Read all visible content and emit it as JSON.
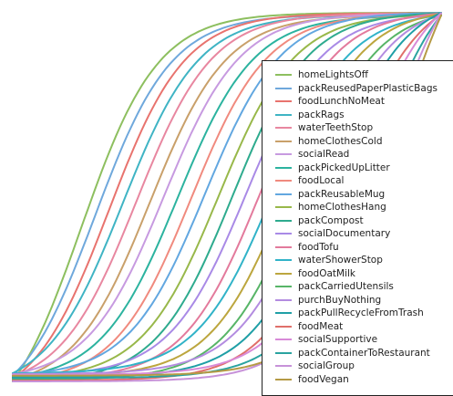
{
  "chart_data": {
    "type": "line",
    "title": "",
    "xlabel": "",
    "ylabel": "",
    "grid": false,
    "legend_position": "right",
    "shape": "sigmoid",
    "series": [
      {
        "name": "homeLightsOff",
        "color": "#8dbf5f",
        "midpoint": 0.2,
        "steepness": 1.0
      },
      {
        "name": "packReusedPaperPlasticBags",
        "color": "#6fa8dc",
        "midpoint": 0.24,
        "steepness": 1.0
      },
      {
        "name": "foodLunchNoMeat",
        "color": "#e8736e",
        "midpoint": 0.28,
        "steepness": 1.0
      },
      {
        "name": "packRags",
        "color": "#3fb4c4",
        "midpoint": 0.32,
        "steepness": 1.0
      },
      {
        "name": "waterTeethStop",
        "color": "#e887a0",
        "midpoint": 0.36,
        "steepness": 1.0
      },
      {
        "name": "homeClothesCold",
        "color": "#c9a06a",
        "midpoint": 0.4,
        "steepness": 1.0
      },
      {
        "name": "socialRead",
        "color": "#c79ae0",
        "midpoint": 0.44,
        "steepness": 1.0
      },
      {
        "name": "packPickedUpLitter",
        "color": "#2cb39f",
        "midpoint": 0.48,
        "steepness": 1.0
      },
      {
        "name": "foodLocal",
        "color": "#f08a7e",
        "midpoint": 0.52,
        "steepness": 1.0
      },
      {
        "name": "packReusableMug",
        "color": "#62a7e0",
        "midpoint": 0.56,
        "steepness": 1.0
      },
      {
        "name": "homeClothesHang",
        "color": "#98b84a",
        "midpoint": 0.6,
        "steepness": 1.0
      },
      {
        "name": "packCompost",
        "color": "#2eab8e",
        "midpoint": 0.64,
        "steepness": 1.0
      },
      {
        "name": "socialDocumentary",
        "color": "#a98ae6",
        "midpoint": 0.68,
        "steepness": 1.0
      },
      {
        "name": "foodTofu",
        "color": "#e37a9c",
        "midpoint": 0.72,
        "steepness": 1.0
      },
      {
        "name": "waterShowerStop",
        "color": "#31b3c8",
        "midpoint": 0.76,
        "steepness": 1.0
      },
      {
        "name": "foodOatMilk",
        "color": "#bca63e",
        "midpoint": 0.8,
        "steepness": 1.0
      },
      {
        "name": "packCarriedUtensils",
        "color": "#57b567",
        "midpoint": 0.84,
        "steepness": 1.0
      },
      {
        "name": "purchBuyNothing",
        "color": "#b38ce0",
        "midpoint": 0.88,
        "steepness": 1.0
      },
      {
        "name": "packPullRecycleFromTrash",
        "color": "#1f9fa6",
        "midpoint": 0.92,
        "steepness": 1.0
      },
      {
        "name": "foodMeat",
        "color": "#e06f6a",
        "midpoint": 0.96,
        "steepness": 1.0
      },
      {
        "name": "socialSupportive",
        "color": "#d88ad8",
        "midpoint": 1.0,
        "steepness": 1.0
      },
      {
        "name": "packContainerToRestaurant",
        "color": "#2aa3a0",
        "midpoint": 1.04,
        "steepness": 1.0
      },
      {
        "name": "socialGroup",
        "color": "#c792d9",
        "midpoint": 1.08,
        "steepness": 1.0
      },
      {
        "name": "foodVegan",
        "color": "#b59a45",
        "midpoint": 1.12,
        "steepness": 1.0
      }
    ]
  }
}
